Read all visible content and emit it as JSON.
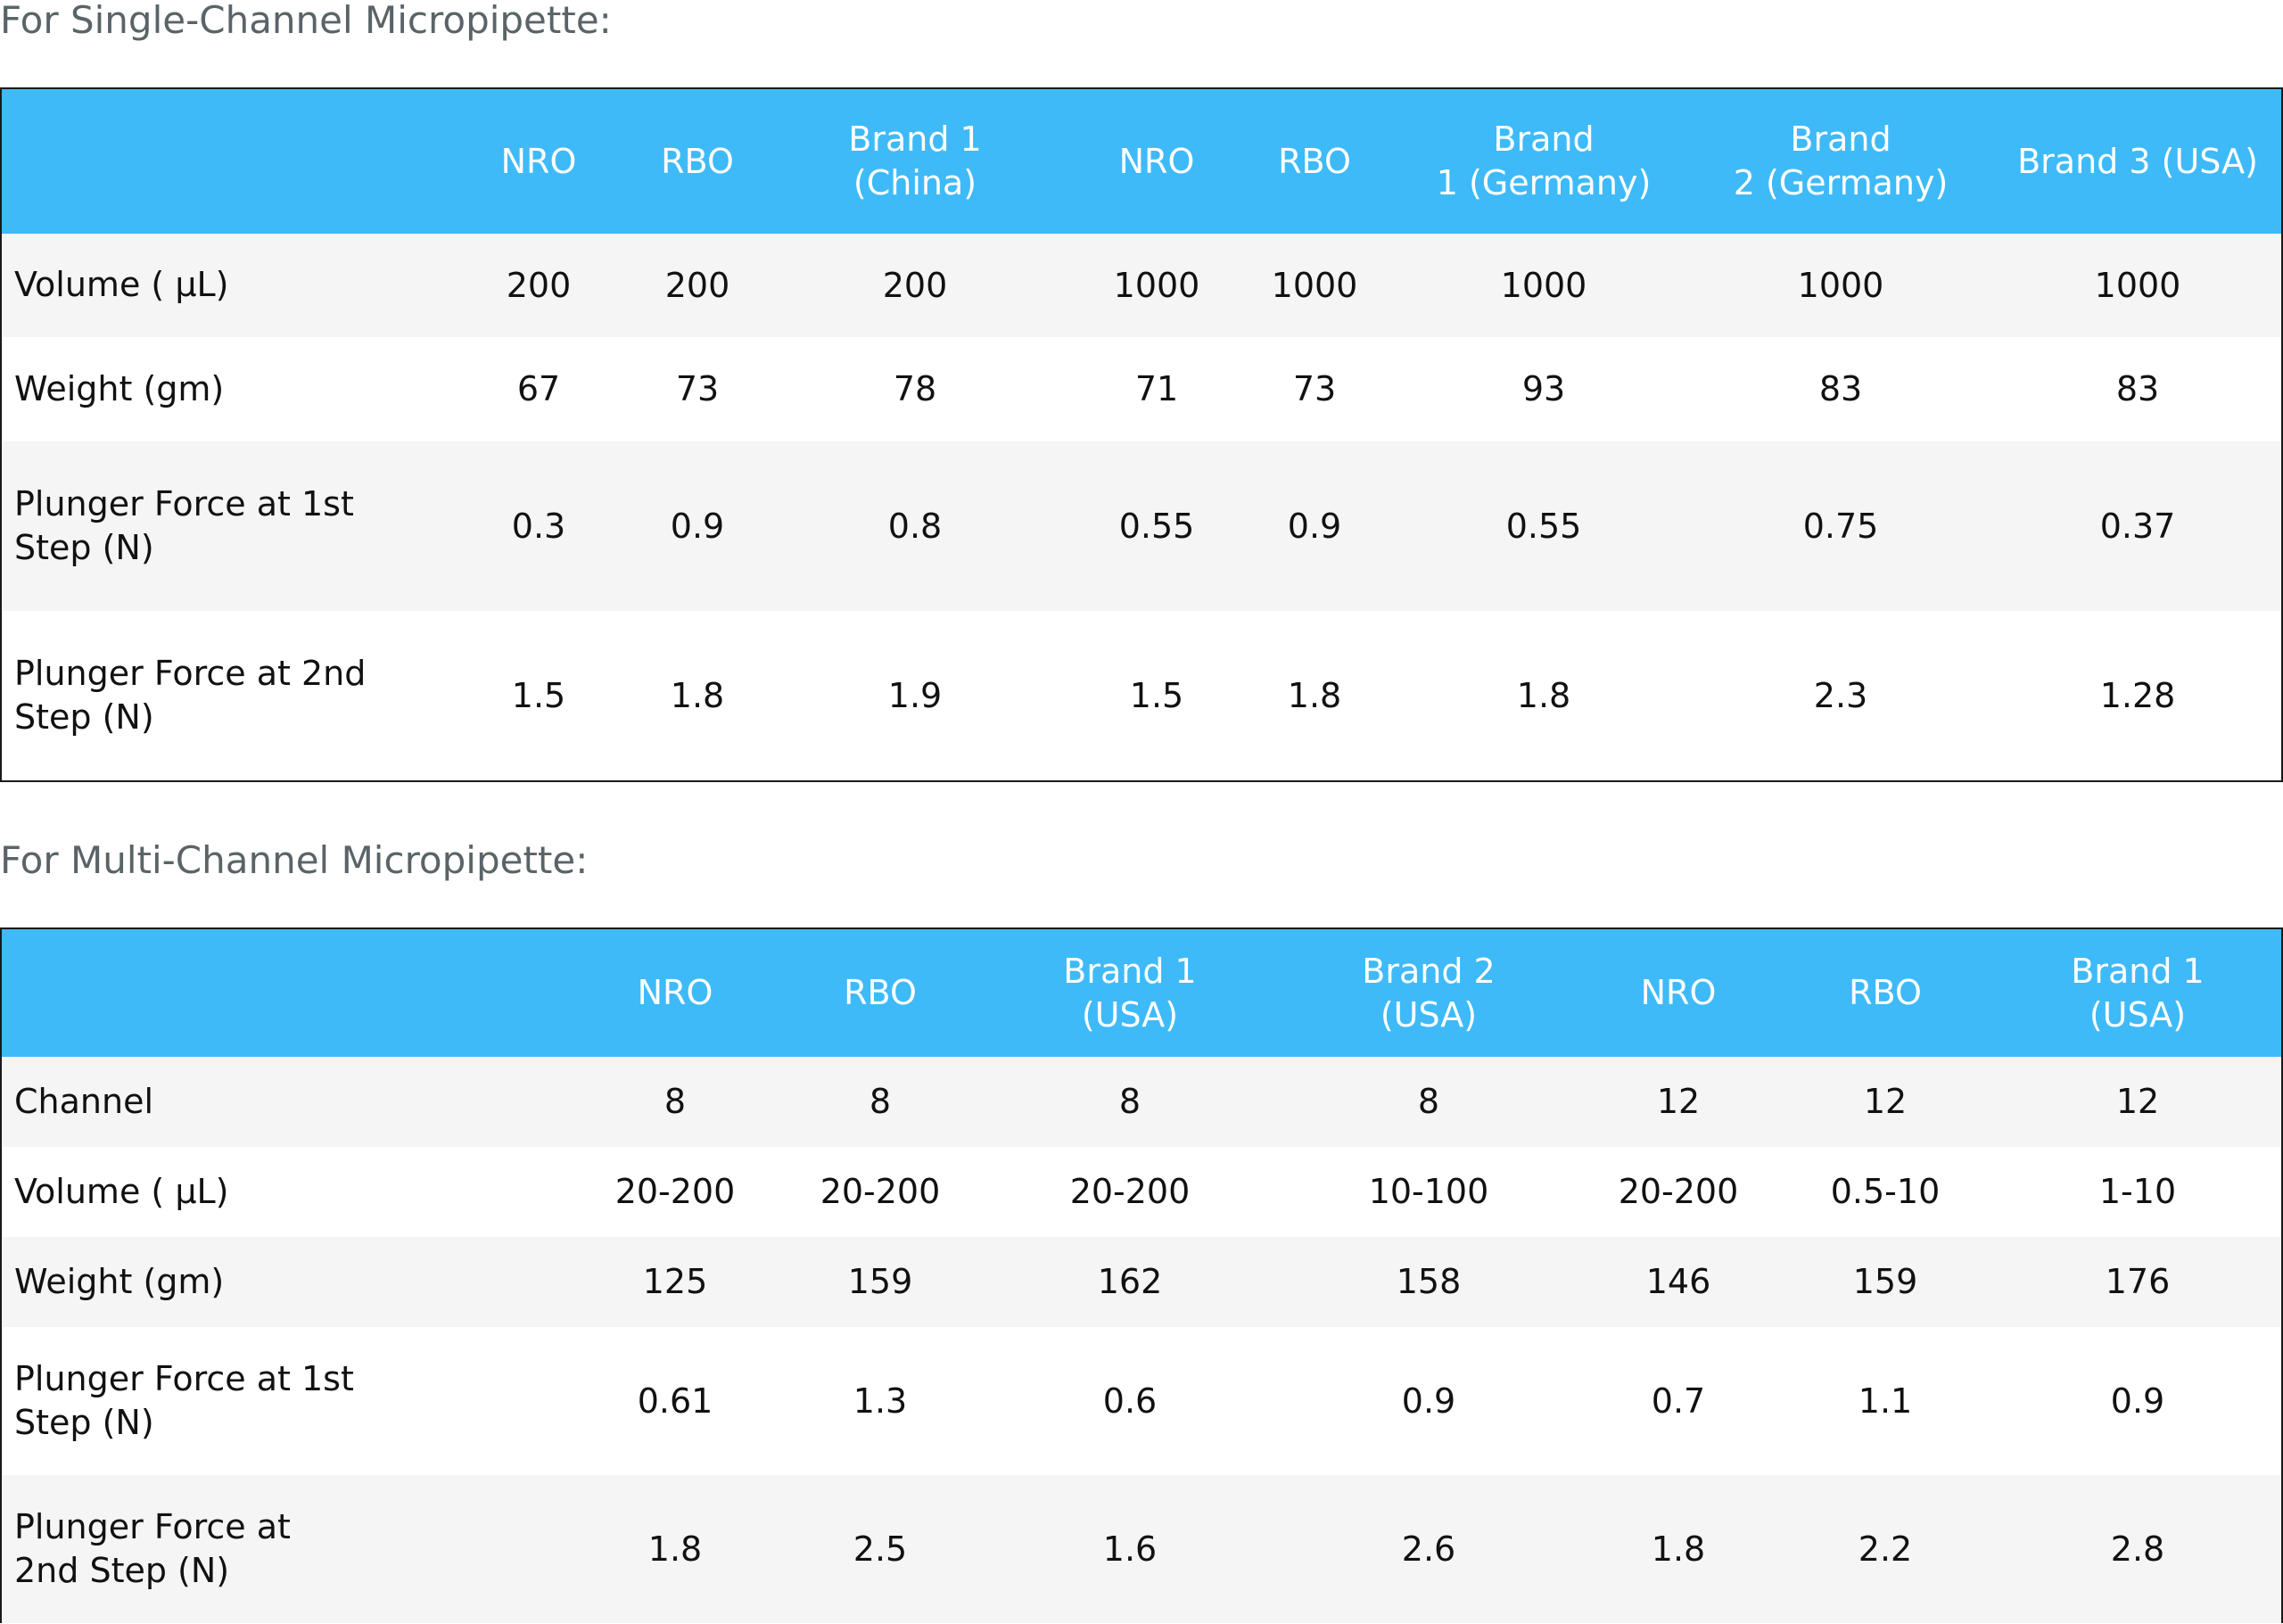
{
  "single": {
    "title": "For Single-Channel Micropipette:",
    "headers": [
      "NRO",
      "RBO",
      "Brand 1\n(China)",
      "NRO",
      "RBO",
      "Brand\n1 (Germany)",
      "Brand\n2 (Germany)",
      "Brand 3 (USA)"
    ],
    "rows": [
      {
        "label": "Volume (   μL)",
        "values": [
          "200",
          "200",
          "200",
          "1000",
          "1000",
          "1000",
          "1000",
          "1000"
        ]
      },
      {
        "label": "Weight (gm)",
        "values": [
          "67",
          "73",
          "78",
          "71",
          "73",
          "93",
          "83",
          "83"
        ]
      },
      {
        "label": "Plunger Force at 1st\nStep (N)",
        "values": [
          "0.3",
          "0.9",
          "0.8",
          "0.55",
          "0.9",
          "0.55",
          "0.75",
          "0.37"
        ]
      },
      {
        "label": "Plunger Force at 2nd\nStep (N)",
        "values": [
          "1.5",
          "1.8",
          "1.9",
          "1.5",
          "1.8",
          "1.8",
          "2.3",
          "1.28"
        ]
      }
    ]
  },
  "multi": {
    "title": "For Multi-Channel Micropipette:",
    "headers": [
      "NRO",
      "RBO",
      "Brand 1\n(USA)",
      "Brand 2\n(USA)",
      "NRO",
      "RBO",
      "Brand 1\n(USA)"
    ],
    "rows": [
      {
        "label": "Channel",
        "values": [
          "8",
          "8",
          "8",
          "8",
          "12",
          "12",
          "12"
        ]
      },
      {
        "label": "Volume (   μL)",
        "values": [
          "20-200",
          "20-200",
          "20-200",
          "10-100",
          "20-200",
          "0.5-10",
          "1-10"
        ]
      },
      {
        "label": "Weight (gm)",
        "values": [
          "125",
          "159",
          "162",
          "158",
          "146",
          "159",
          "176"
        ]
      },
      {
        "label": "Plunger Force at 1st\nStep (N)",
        "values": [
          "0.61",
          "1.3",
          "0.6",
          "0.9",
          "0.7",
          "1.1",
          "0.9"
        ]
      },
      {
        "label": "Plunger Force at\n2nd Step (N)",
        "values": [
          "1.8",
          "2.5",
          "1.6",
          "2.6",
          "1.8",
          "2.2",
          "2.8"
        ]
      }
    ]
  }
}
